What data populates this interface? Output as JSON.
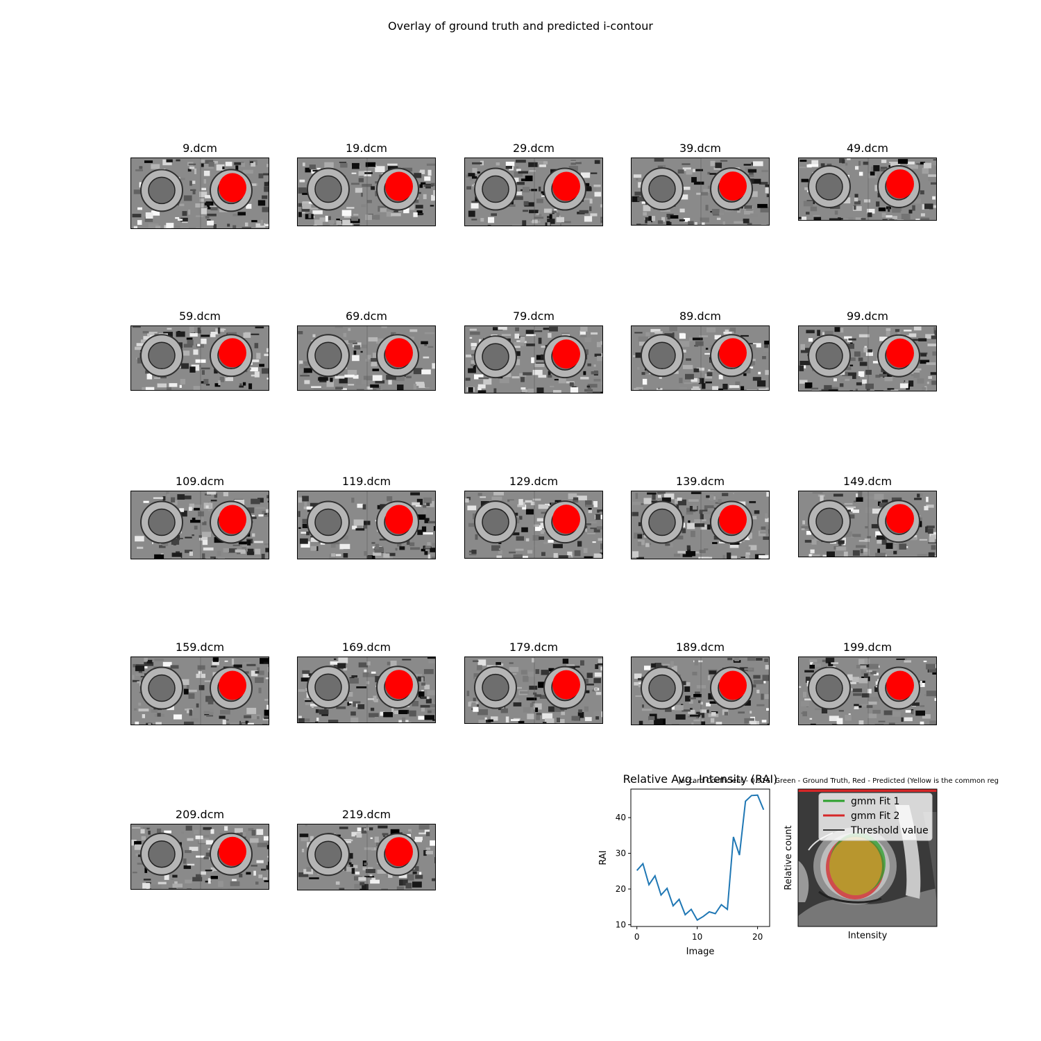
{
  "figure_title": "Overlay of ground truth and predicted i-contour",
  "panels": [
    {
      "label": "9.dcm"
    },
    {
      "label": "19.dcm"
    },
    {
      "label": "29.dcm"
    },
    {
      "label": "39.dcm"
    },
    {
      "label": "49.dcm"
    },
    {
      "label": "59.dcm"
    },
    {
      "label": "69.dcm"
    },
    {
      "label": "79.dcm"
    },
    {
      "label": "89.dcm"
    },
    {
      "label": "99.dcm"
    },
    {
      "label": "109.dcm"
    },
    {
      "label": "119.dcm"
    },
    {
      "label": "129.dcm"
    },
    {
      "label": "139.dcm"
    },
    {
      "label": "149.dcm"
    },
    {
      "label": "159.dcm"
    },
    {
      "label": "169.dcm"
    },
    {
      "label": "179.dcm"
    },
    {
      "label": "189.dcm"
    },
    {
      "label": "199.dcm"
    },
    {
      "label": "209.dcm"
    },
    {
      "label": "219.dcm"
    }
  ],
  "colors": {
    "prediction": "#ff0000",
    "line": "#1f77b4",
    "fit1": "#2ca02c",
    "fit2": "#d62728",
    "threshold": "#000000",
    "overlap": "#b8962e"
  },
  "chart_data": [
    {
      "type": "line",
      "title": "Relative Avg. Intensity (RAI)",
      "xlabel": "Image",
      "ylabel": "RAI",
      "x": [
        0,
        1,
        2,
        3,
        4,
        5,
        6,
        7,
        8,
        9,
        10,
        11,
        12,
        13,
        14,
        15,
        16,
        17,
        18,
        19,
        20,
        21
      ],
      "series": [
        {
          "values": [
            25.2,
            27.1,
            21.2,
            23.7,
            18.3,
            20.2,
            15.3,
            17.1,
            12.8,
            14.3,
            11.3,
            12.3,
            13.6,
            13.1,
            15.6,
            14.3,
            34.6,
            29.5,
            44.6,
            46.2,
            46.3,
            42.2
          ]
        }
      ],
      "xlim": [
        -1,
        22
      ],
      "ylim": [
        9.5,
        48
      ],
      "xticks": [
        0,
        10,
        20
      ],
      "yticks": [
        10,
        20,
        30,
        40
      ],
      "grid": false
    },
    {
      "type": "histogram-overlay",
      "title": "Jaccard Coefficient - 0.916. Green - Ground Truth, Red - Predicted (Yellow is the common reg",
      "xlabel": "Intensity",
      "ylabel": "Relative count",
      "legend_position": "top-right",
      "legend": [
        {
          "name": "gmm Fit 1",
          "color": "#2ca02c"
        },
        {
          "name": "gmm Fit 2",
          "color": "#d62728"
        },
        {
          "name": "Threshold value",
          "color": "#000000"
        }
      ]
    }
  ],
  "overlay_title_front": "Relative Avg. Intensity (RAI)",
  "overlay_title_back": "Jaccard Coefficient - 0.916. Green - Ground Truth, Red - Predicted (Yellow is the common reg"
}
